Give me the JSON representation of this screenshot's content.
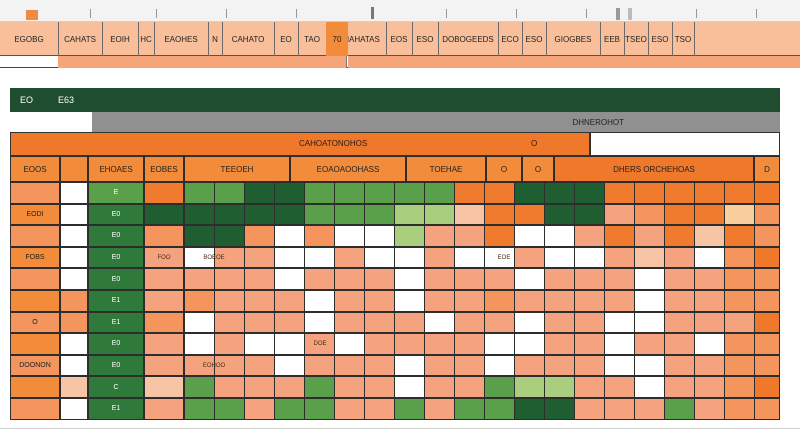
{
  "ribbon": {
    "value": "7"
  },
  "header": {
    "cells": [
      {
        "label": "EGOBG",
        "w": 58
      },
      {
        "label": "CAHATS",
        "w": 44
      },
      {
        "label": "EOIH",
        "w": 36
      },
      {
        "label": "HC",
        "w": 16
      },
      {
        "label": "EAOHES",
        "w": 54
      },
      {
        "label": "N",
        "w": 14
      },
      {
        "label": "CAHATO",
        "w": 52
      },
      {
        "label": "EO",
        "w": 24
      },
      {
        "label": "TAO",
        "w": 28
      },
      {
        "label": "DAHAHATAS",
        "w": 60
      },
      {
        "label": "EOS",
        "w": 26
      },
      {
        "label": "ESO",
        "w": 26
      },
      {
        "label": "DOBOGEEDS",
        "w": 60
      },
      {
        "label": "ECO",
        "w": 24
      },
      {
        "label": "ESO",
        "w": 24
      },
      {
        "label": "GIOGBES",
        "w": 54
      },
      {
        "label": "EEB",
        "w": 24
      },
      {
        "label": "TSEO",
        "w": 24
      },
      {
        "label": "ESO",
        "w": 24
      },
      {
        "label": "TSO",
        "w": 22
      }
    ],
    "highlight": "70"
  },
  "sheet": {
    "code1": "EO",
    "code2": "E63",
    "section_label": "DHNEROHOT",
    "banner_left": "CAHOATONOHOS",
    "banner_right": "O"
  },
  "grid": {
    "columns": [
      {
        "label": "EOOS",
        "w": 50
      },
      {
        "label": "",
        "w": 28
      },
      {
        "label": "EHOAES",
        "w": 56
      },
      {
        "label": "EOBES",
        "w": 40
      },
      {
        "label": "TEEOEH",
        "w": 106
      },
      {
        "label": "EOAOAOOHASS",
        "w": 116
      },
      {
        "label": "TOEHAE",
        "w": 80
      },
      {
        "label": "O",
        "w": 36
      },
      {
        "label": "O",
        "w": 32
      },
      {
        "label": "DHERS ORCHEHOAS",
        "w": 200
      },
      {
        "label": "D",
        "w": 26
      }
    ],
    "row_labels": [
      "",
      "EODI",
      "",
      "FOBS",
      "",
      "",
      "O",
      "",
      "DOONON",
      "",
      ""
    ],
    "row_numbers": [
      "E",
      "E0",
      "E0",
      "E0",
      "E0",
      "E1",
      "E1",
      "E0",
      "E0",
      "C",
      "E1"
    ],
    "notes": [
      "FOO",
      "BOEOE",
      "EOHOO",
      "EOE",
      "DOE"
    ],
    "palette": {
      "o": "#f5955e",
      "O": "#f07a2e",
      "p": "#f8c4a6",
      "s": "#f5a37f",
      "w": "#ffffff",
      "g": "#5aa04a",
      "G": "#1f5e31",
      "l": "#a9cf7e",
      "y": "#f9cfa0",
      "k": "#fbe3d4"
    }
  }
}
